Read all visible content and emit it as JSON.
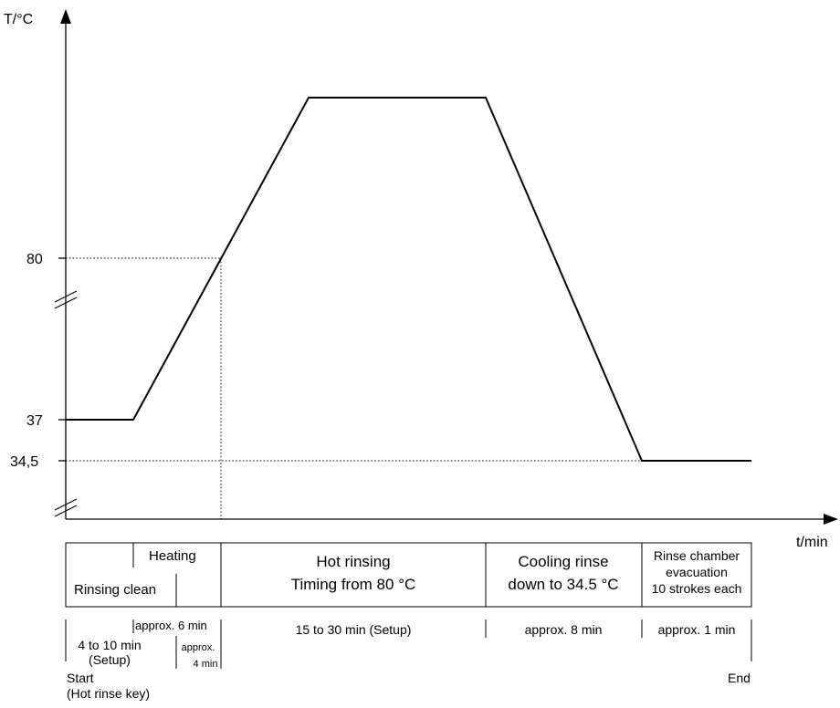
{
  "axes": {
    "y_label": "T/°C",
    "x_label": "t/min",
    "y_ticks": [
      "80",
      "37",
      "34,5"
    ]
  },
  "phases": {
    "heating": "Heating",
    "rinsing_clean": "Rinsing clean",
    "hot_rinsing": [
      "Hot rinsing",
      "Timing from 80 °C"
    ],
    "cooling_rinse": [
      "Cooling rinse",
      "down to 34.5 °C"
    ],
    "evacuation": [
      "Rinse chamber",
      "evacuation",
      "10 strokes each"
    ]
  },
  "durations": {
    "approx_6": "approx. 6 min",
    "setup_4_10": [
      "4 to 10 min",
      "(Setup)"
    ],
    "approx_4": [
      "approx.",
      "4 min"
    ],
    "hot_rinse_time": "15 to 30 min (Setup)",
    "cooling_time": "approx. 8 min",
    "evacuation_time": "approx. 1 min"
  },
  "markers": {
    "start": [
      "Start",
      "(Hot rinse key)"
    ],
    "end": "End"
  }
}
